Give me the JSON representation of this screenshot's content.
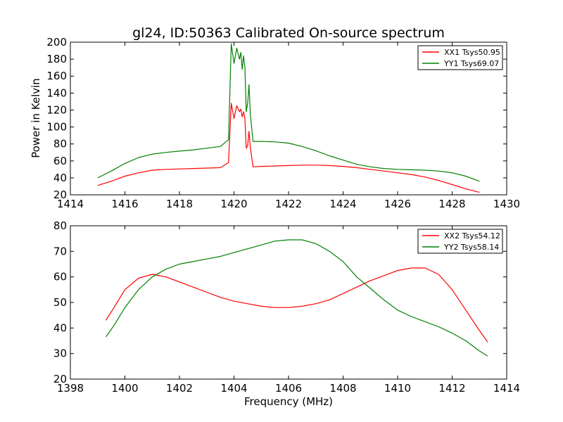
{
  "chart_data": [
    {
      "type": "line",
      "title": "gl24, ID:50363 Calibrated On-source spectrum",
      "xlabel": "",
      "ylabel": "Power in Kelvin",
      "xlim": [
        1414,
        1430
      ],
      "ylim": [
        20,
        200
      ],
      "xticks": [
        "1414",
        "1416",
        "1418",
        "1420",
        "1422",
        "1424",
        "1426",
        "1428",
        "1430"
      ],
      "yticks": [
        "20",
        "40",
        "60",
        "80",
        "100",
        "120",
        "140",
        "160",
        "180",
        "200"
      ],
      "grid": false,
      "legend_position": "top-right",
      "series": [
        {
          "name": "XX1 Tsys50.95",
          "color": "#ff0000",
          "x": [
            1415.0,
            1415.5,
            1416.0,
            1416.5,
            1417.0,
            1417.5,
            1418.0,
            1418.5,
            1419.0,
            1419.5,
            1419.8,
            1419.9,
            1420.0,
            1420.1,
            1420.2,
            1420.25,
            1420.3,
            1420.35,
            1420.4,
            1420.45,
            1420.5,
            1420.55,
            1420.6,
            1420.7,
            1421.0,
            1421.5,
            1422.0,
            1422.5,
            1423.0,
            1423.5,
            1424.0,
            1424.5,
            1425.0,
            1425.5,
            1426.0,
            1426.5,
            1427.0,
            1427.5,
            1428.0,
            1428.5,
            1429.0
          ],
          "values": [
            31,
            36,
            42,
            46,
            49,
            50,
            50.5,
            51,
            51.5,
            52,
            58,
            128,
            110,
            125,
            118,
            121,
            112,
            118,
            110,
            75,
            78,
            95,
            76,
            53,
            53.5,
            54,
            54.5,
            55,
            55,
            54.5,
            53.5,
            52,
            50,
            48,
            46,
            44,
            41,
            37,
            32,
            27,
            23
          ]
        },
        {
          "name": "YY1 Tsys69.07",
          "color": "#008000",
          "x": [
            1415.0,
            1415.5,
            1416.0,
            1416.5,
            1417.0,
            1417.5,
            1418.0,
            1418.5,
            1419.0,
            1419.5,
            1419.8,
            1419.9,
            1420.0,
            1420.1,
            1420.2,
            1420.25,
            1420.3,
            1420.35,
            1420.4,
            1420.45,
            1420.5,
            1420.55,
            1420.6,
            1420.7,
            1421.0,
            1421.5,
            1422.0,
            1422.5,
            1423.0,
            1423.5,
            1424.0,
            1424.5,
            1425.0,
            1425.5,
            1426.0,
            1426.5,
            1427.0,
            1427.5,
            1428.0,
            1428.5,
            1429.0
          ],
          "values": [
            40,
            48,
            57,
            64,
            68,
            70,
            71.5,
            73,
            75,
            77,
            85,
            198,
            175,
            193,
            180,
            188,
            168,
            184,
            170,
            118,
            128,
            150,
            115,
            83,
            83,
            82.5,
            81,
            77,
            72,
            66,
            61,
            56,
            53,
            51,
            50,
            49.5,
            49,
            48,
            46,
            42,
            36
          ]
        }
      ]
    },
    {
      "type": "line",
      "title": "",
      "xlabel": "Frequency (MHz)",
      "ylabel": "",
      "xlim": [
        1398,
        1414
      ],
      "ylim": [
        20,
        80
      ],
      "xticks": [
        "1398",
        "1400",
        "1402",
        "1404",
        "1406",
        "1408",
        "1410",
        "1412",
        "1414"
      ],
      "yticks": [
        "20",
        "30",
        "40",
        "50",
        "60",
        "70",
        "80"
      ],
      "grid": false,
      "legend_position": "top-right",
      "series": [
        {
          "name": "XX2 Tsys54.12",
          "color": "#ff0000",
          "x": [
            1399.3,
            1399.6,
            1400.0,
            1400.5,
            1401.0,
            1401.5,
            1402.0,
            1402.5,
            1403.0,
            1403.5,
            1404.0,
            1404.5,
            1405.0,
            1405.5,
            1406.0,
            1406.5,
            1407.0,
            1407.5,
            1408.0,
            1408.5,
            1409.0,
            1409.5,
            1410.0,
            1410.5,
            1411.0,
            1411.5,
            1412.0,
            1412.5,
            1413.0,
            1413.3
          ],
          "values": [
            43,
            48,
            55,
            59.5,
            61,
            60,
            58,
            56,
            54,
            52,
            50.5,
            49.5,
            48.5,
            48,
            48,
            48.5,
            49.5,
            51,
            53.5,
            56,
            58.5,
            60.5,
            62.5,
            63.5,
            63.5,
            61,
            55,
            47,
            39,
            34.5
          ]
        },
        {
          "name": "YY2 Tsys58.14",
          "color": "#008000",
          "x": [
            1399.3,
            1399.6,
            1400.0,
            1400.5,
            1401.0,
            1401.5,
            1402.0,
            1402.5,
            1403.0,
            1403.5,
            1404.0,
            1404.5,
            1405.0,
            1405.5,
            1406.0,
            1406.5,
            1407.0,
            1407.5,
            1408.0,
            1408.5,
            1409.0,
            1409.5,
            1410.0,
            1410.5,
            1411.0,
            1411.5,
            1412.0,
            1412.5,
            1413.0,
            1413.3
          ],
          "values": [
            36.5,
            41,
            48,
            55,
            60,
            63,
            65,
            66,
            67,
            68,
            69.5,
            71,
            72.5,
            74,
            74.5,
            74.5,
            73,
            70,
            66,
            60,
            55.5,
            51,
            47,
            44.5,
            42.5,
            40.5,
            38,
            35,
            31,
            29
          ]
        }
      ]
    }
  ]
}
